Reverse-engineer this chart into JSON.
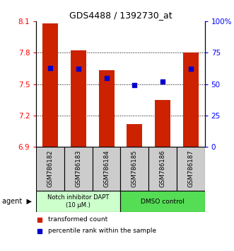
{
  "title": "GDS4488 / 1392730_at",
  "samples": [
    "GSM786182",
    "GSM786183",
    "GSM786184",
    "GSM786185",
    "GSM786186",
    "GSM786187"
  ],
  "bar_values": [
    8.08,
    7.82,
    7.63,
    7.12,
    7.35,
    7.8
  ],
  "percentile_values": [
    63,
    62,
    55,
    49,
    52,
    62
  ],
  "bar_color": "#cc2200",
  "dot_color": "#0000cc",
  "ylim": [
    6.9,
    8.1
  ],
  "y_ticks": [
    6.9,
    7.2,
    7.5,
    7.8,
    8.1
  ],
  "y2_ticks": [
    0,
    25,
    50,
    75,
    100
  ],
  "y2_tick_labels": [
    "0",
    "25",
    "50",
    "75",
    "100%"
  ],
  "grid_lines": [
    7.2,
    7.5,
    7.8
  ],
  "agent_group1_label": "Notch inhibitor DAPT\n(10 μM.)",
  "agent_group1_color": "#ccffcc",
  "agent_group2_label": "DMSO control",
  "agent_group2_color": "#55dd55",
  "legend_red": "transformed count",
  "legend_blue": "percentile rank within the sample",
  "bar_bottom": 6.9,
  "bar_width": 0.55,
  "bg_color": "#ffffff",
  "sample_box_color": "#cccccc",
  "agent_label": "agent"
}
